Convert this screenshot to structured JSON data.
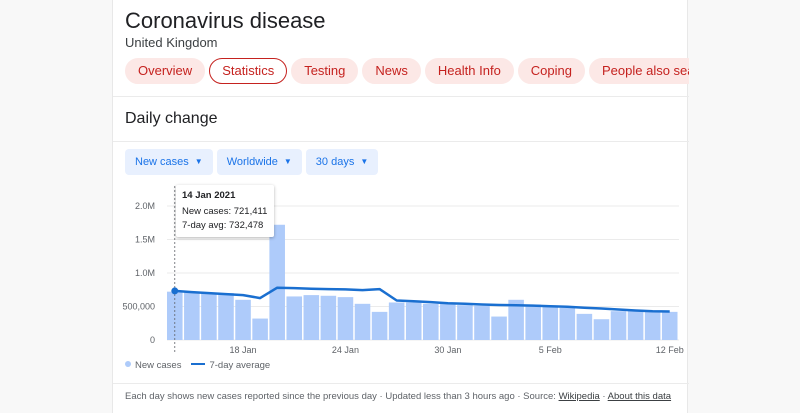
{
  "header": {
    "title": "Coronavirus disease",
    "subtitle": "United Kingdom"
  },
  "tabs": [
    {
      "label": "Overview"
    },
    {
      "label": "Statistics",
      "active": true
    },
    {
      "label": "Testing"
    },
    {
      "label": "News"
    },
    {
      "label": "Health Info"
    },
    {
      "label": "Coping"
    },
    {
      "label": "People also search for"
    }
  ],
  "section_title": "Daily change",
  "filters": {
    "metric": "New cases",
    "region": "Worldwide",
    "range": "30 days"
  },
  "tooltip": {
    "date": "14 Jan 2021",
    "new_cases": "New cases: 721,411",
    "avg": "7-day avg: 732,478"
  },
  "legend": {
    "bars": "New cases",
    "line": "7-day average"
  },
  "footer": {
    "text": "Each day shows new cases reported since the previous day · Updated less than 3 hours ago · ",
    "source_label": "Source: ",
    "source_link": "Wikipedia",
    "about_link": "About this data"
  },
  "colors": {
    "bar": "#aecbfa",
    "line": "#1a6fd0",
    "chip_bg": "#e8f0fe",
    "tab_bg": "#fce8e6",
    "tab_text": "#c5221f"
  },
  "chart_data": {
    "type": "bar",
    "yticks": [
      "0",
      "500,000",
      "1.0M",
      "1.5M",
      "2.0M"
    ],
    "ylim": [
      0,
      2000000
    ],
    "xticks": [
      {
        "label": "18 Jan",
        "index": 4
      },
      {
        "label": "24 Jan",
        "index": 10
      },
      {
        "label": "30 Jan",
        "index": 16
      },
      {
        "label": "5 Feb",
        "index": 22
      },
      {
        "label": "12 Feb",
        "index": 29
      }
    ],
    "series": [
      {
        "name": "New cases",
        "type": "bar",
        "values": [
          721411,
          710000,
          700000,
          700000,
          600000,
          320000,
          1720000,
          650000,
          670000,
          660000,
          640000,
          540000,
          420000,
          560000,
          560000,
          540000,
          540000,
          520000,
          510000,
          350000,
          600000,
          530000,
          500000,
          480000,
          390000,
          310000,
          430000,
          450000,
          440000,
          420000
        ]
      },
      {
        "name": "7-day average",
        "type": "line",
        "values": [
          732478,
          715000,
          700000,
          685000,
          670000,
          625000,
          780000,
          775000,
          765000,
          760000,
          755000,
          745000,
          760000,
          590000,
          578000,
          565000,
          550000,
          540000,
          530000,
          522000,
          518000,
          514000,
          505000,
          495000,
          480000,
          470000,
          455000,
          440000,
          430000,
          425000
        ]
      }
    ],
    "grid": true,
    "hover_index": 0
  }
}
